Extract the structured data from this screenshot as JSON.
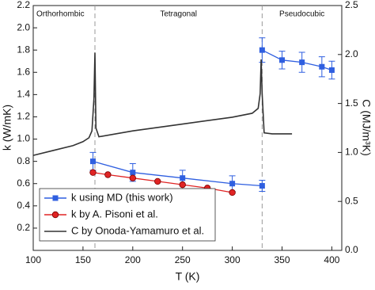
{
  "chart_data": {
    "type": "line",
    "xlabel": "T (K)",
    "ylabel": "k (W/mK)",
    "y2label": "C (MJ/m³K)",
    "xlim": [
      100,
      410
    ],
    "xticks": [
      100,
      150,
      200,
      250,
      300,
      350,
      400
    ],
    "ylim": [
      0,
      2.2
    ],
    "yticks": [
      0.2,
      0.4,
      0.6,
      0.8,
      {
        "value": 1,
        "label": "1.0"
      },
      1.2,
      1.4,
      1.6,
      1.8,
      {
        "value": 2,
        "label": "2.0"
      },
      2.2
    ],
    "y2lim": [
      0,
      2.5
    ],
    "y2ticks": [
      {
        "value": 0,
        "label": "0.0"
      },
      0.5,
      {
        "value": 1,
        "label": "1.0"
      },
      1.5,
      {
        "value": 2,
        "label": "2.0"
      },
      2.5
    ],
    "phase_boundaries": [
      162,
      330
    ],
    "annotations": [
      "Orthorhombic",
      "Tetragonal",
      "Pseudocubic"
    ],
    "legend": "lower left",
    "series": [
      {
        "name": "k using MD (this work)",
        "color": "#2f5fe0",
        "marker": "square",
        "x": [
          160,
          200,
          250,
          300,
          330,
          330,
          350,
          370,
          390,
          400
        ],
        "values": [
          0.8,
          0.7,
          0.65,
          0.6,
          0.58,
          1.8,
          1.71,
          1.69,
          1.65,
          1.62
        ],
        "errors": [
          0.08,
          0.08,
          0.07,
          0.07,
          0.05,
          0.11,
          0.08,
          0.09,
          0.09,
          0.08
        ]
      },
      {
        "name": "k by A. Pisoni et al.",
        "color": "#e02424",
        "marker": "circle",
        "x": [
          160,
          175,
          200,
          225,
          250,
          275,
          300
        ],
        "values": [
          0.7,
          0.68,
          0.65,
          0.62,
          0.59,
          0.56,
          0.52
        ]
      },
      {
        "name": "C by Onoda-Yamamuro et al.",
        "color": "#333333",
        "marker": "none",
        "axis": "y2",
        "x": [
          100,
          120,
          140,
          150,
          156,
          159,
          161,
          162,
          163,
          166,
          200,
          250,
          300,
          320,
          326,
          328,
          329,
          330,
          332,
          340,
          360
        ],
        "values": [
          0.97,
          1.02,
          1.07,
          1.11,
          1.15,
          1.22,
          1.55,
          2.02,
          1.25,
          1.16,
          1.22,
          1.29,
          1.36,
          1.4,
          1.45,
          1.6,
          1.95,
          1.6,
          1.2,
          1.19,
          1.19
        ]
      }
    ]
  }
}
